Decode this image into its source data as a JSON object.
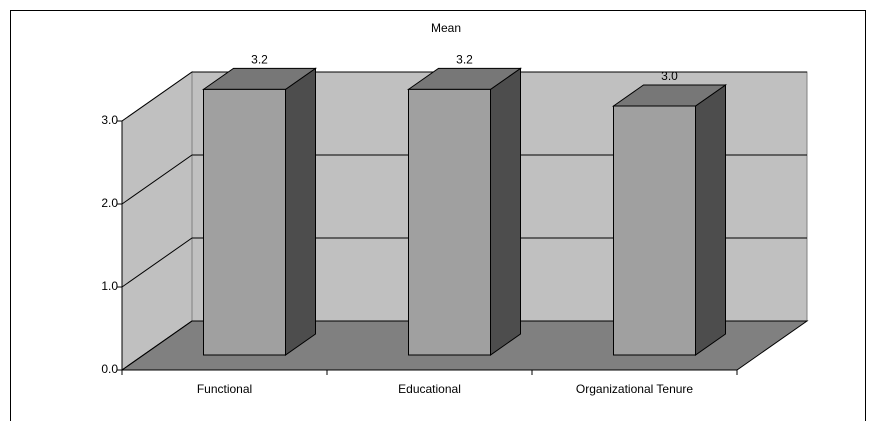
{
  "chart_data": {
    "type": "bar3d",
    "title": "Mean",
    "categories": [
      "Functional",
      "Educational",
      "Organizational Tenure"
    ],
    "values": [
      3.2,
      3.2,
      3.0
    ],
    "value_labels": [
      "3.2",
      "3.2",
      "3.0"
    ],
    "ylim": [
      0,
      3
    ],
    "yticks": [
      {
        "value": 0,
        "label": "0.0"
      },
      {
        "value": 1,
        "label": "1.0"
      },
      {
        "value": 2,
        "label": "2.0"
      },
      {
        "value": 3,
        "label": "3.0"
      }
    ],
    "grid": true
  }
}
